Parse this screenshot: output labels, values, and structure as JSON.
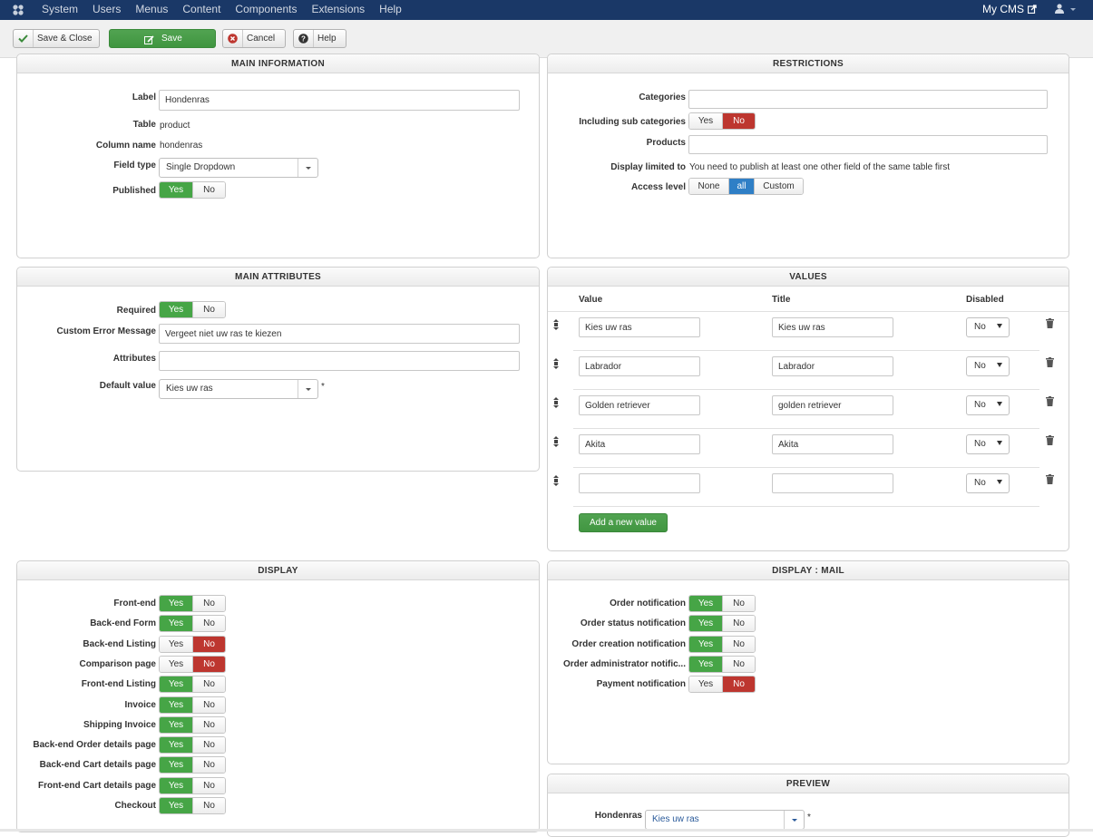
{
  "nav": {
    "menu": [
      "System",
      "Users",
      "Menus",
      "Content",
      "Components",
      "Extensions",
      "Help"
    ],
    "site_name": "My CMS"
  },
  "toolbar": {
    "save_close": "Save & Close",
    "save": "Save",
    "cancel": "Cancel",
    "help": "Help"
  },
  "main_info": {
    "title": "MAIN INFORMATION",
    "label_label": "Label",
    "label_value": "Hondenras",
    "table_label": "Table",
    "table_value": "product",
    "column_label": "Column name",
    "column_value": "hondenras",
    "fieldtype_label": "Field type",
    "fieldtype_value": "Single Dropdown",
    "published_label": "Published",
    "published": "Yes"
  },
  "restrictions": {
    "title": "RESTRICTIONS",
    "categories_label": "Categories",
    "categories_value": "",
    "subcat_label": "Including sub categories",
    "subcat": "No",
    "products_label": "Products",
    "products_value": "",
    "display_limited_label": "Display limited to",
    "display_limited_text": "You need to publish at least one other field of the same table first",
    "access_label": "Access level",
    "access_options": [
      "None",
      "all",
      "Custom"
    ],
    "access_selected": "all"
  },
  "main_attributes": {
    "title": "MAIN ATTRIBUTES",
    "required_label": "Required",
    "required": "Yes",
    "error_label": "Custom Error Message",
    "error_value": "Vergeet niet uw ras te kiezen",
    "attributes_label": "Attributes",
    "attributes_value": "",
    "default_label": "Default value",
    "default_value": "Kies uw ras",
    "required_mark": "*"
  },
  "values": {
    "title": "VALUES",
    "col_value": "Value",
    "col_title": "Title",
    "col_disabled": "Disabled",
    "rows": [
      {
        "value": "Kies uw ras",
        "title": "Kies uw ras",
        "disabled": "No"
      },
      {
        "value": "Labrador",
        "title": "Labrador",
        "disabled": "No"
      },
      {
        "value": "Golden retriever",
        "title": "golden retriever",
        "disabled": "No"
      },
      {
        "value": "Akita",
        "title": "Akita",
        "disabled": "No"
      },
      {
        "value": "",
        "title": "",
        "disabled": "No"
      }
    ],
    "add_button": "Add a new value"
  },
  "display": {
    "title": "DISPLAY",
    "rows": [
      {
        "label": "Front-end",
        "state": "Yes"
      },
      {
        "label": "Back-end Form",
        "state": "Yes"
      },
      {
        "label": "Back-end Listing",
        "state": "No"
      },
      {
        "label": "Comparison page",
        "state": "No"
      },
      {
        "label": "Front-end Listing",
        "state": "Yes"
      },
      {
        "label": "Invoice",
        "state": "Yes"
      },
      {
        "label": "Shipping Invoice",
        "state": "Yes"
      },
      {
        "label": "Back-end Order details page",
        "state": "Yes"
      },
      {
        "label": "Back-end Cart details page",
        "state": "Yes"
      },
      {
        "label": "Front-end Cart details page",
        "state": "Yes"
      },
      {
        "label": "Checkout",
        "state": "Yes"
      }
    ]
  },
  "display_mail": {
    "title": "DISPLAY : MAIL",
    "rows": [
      {
        "label": "Order notification",
        "state": "Yes"
      },
      {
        "label": "Order status notification",
        "state": "Yes"
      },
      {
        "label": "Order creation notification",
        "state": "Yes"
      },
      {
        "label": "Order administrator notific...",
        "state": "Yes"
      },
      {
        "label": "Payment notification",
        "state": "No"
      }
    ]
  },
  "preview": {
    "title": "PREVIEW",
    "field_label": "Hondenras",
    "field_value": "Kies uw ras",
    "required_mark": "*"
  },
  "toggle_labels": {
    "yes": "Yes",
    "no": "No"
  },
  "colors": {
    "nav": "#1a3867",
    "green": "#46a546",
    "red": "#bd362f",
    "blue": "#2f7fc6"
  }
}
